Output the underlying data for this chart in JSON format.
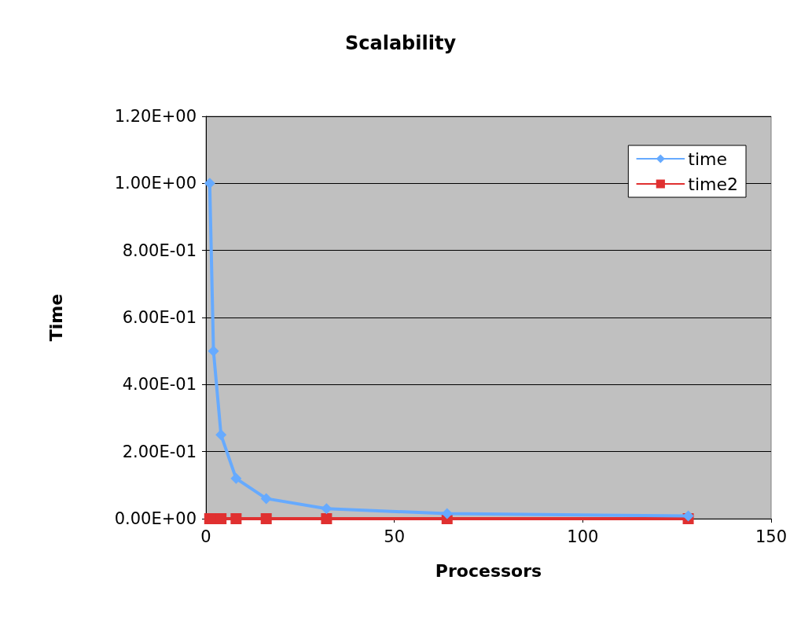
{
  "chart_data": {
    "type": "line",
    "title": "Scalability",
    "xlabel": "Processors",
    "ylabel": "Time",
    "x": [
      1,
      2,
      4,
      8,
      16,
      32,
      64,
      128
    ],
    "series": [
      {
        "name": "time",
        "color": "#66aaff",
        "marker": "diamond",
        "values": [
          1,
          0.5,
          0.25,
          0.12,
          0.06,
          0.03,
          0.015,
          0.008
        ]
      },
      {
        "name": "time2",
        "color": "#e03030",
        "marker": "square",
        "values": [
          0,
          0,
          0,
          0,
          0,
          0,
          0,
          0
        ]
      }
    ],
    "xlim": [
      0,
      150
    ],
    "xticks": [
      0,
      50,
      100,
      150
    ],
    "ylim": [
      0,
      1.2
    ],
    "yticks": [
      {
        "value": 0,
        "label": "0.00E+00"
      },
      {
        "value": 0.2,
        "label": "2.00E-01"
      },
      {
        "value": 0.4,
        "label": "4.00E-01"
      },
      {
        "value": 0.6,
        "label": "6.00E-01"
      },
      {
        "value": 0.8,
        "label": "8.00E-01"
      },
      {
        "value": 1,
        "label": "1.00E+00"
      },
      {
        "value": 1.2,
        "label": "1.20E+00"
      }
    ],
    "grid": "y",
    "legend": "top right",
    "line_style": "solid"
  }
}
